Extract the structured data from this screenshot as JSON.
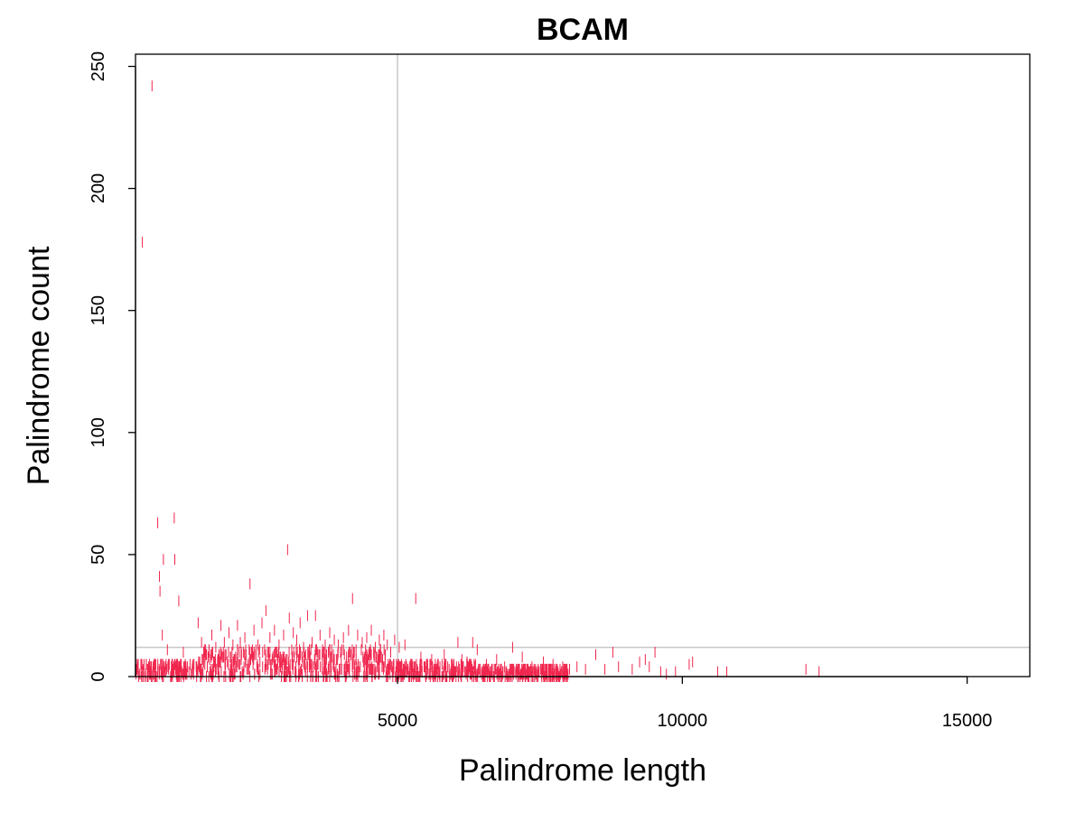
{
  "chart_data": {
    "type": "scatter",
    "title": "BCAM",
    "xlabel": "Palindrome length",
    "ylabel": "Palindrome count",
    "xlim": [
      400,
      16100
    ],
    "ylim": [
      0,
      255
    ],
    "x_ticks": [
      "5000",
      "10000",
      "15000"
    ],
    "y_ticks": [
      "0",
      "50",
      "100",
      "150",
      "200",
      "250"
    ],
    "reference_lines": {
      "vertical_x": 5000,
      "horizontal_y": 12
    },
    "grid": false,
    "legend": "none",
    "colors": {
      "marks": "#f0264e",
      "reference": "#c8c8c8",
      "axes": "#000000"
    },
    "background_density": [
      {
        "x_from": 400,
        "x_to": 1500,
        "max": 5
      },
      {
        "x_from": 1500,
        "x_to": 4800,
        "max": 11
      },
      {
        "x_from": 4800,
        "x_to": 6400,
        "max": 5
      },
      {
        "x_from": 6400,
        "x_to": 8000,
        "max": 3
      }
    ],
    "points": [
      [
        520,
        178
      ],
      [
        690,
        242
      ],
      [
        790,
        63
      ],
      [
        820,
        41
      ],
      [
        830,
        35
      ],
      [
        890,
        48
      ],
      [
        870,
        17
      ],
      [
        960,
        11
      ],
      [
        1080,
        65
      ],
      [
        1090,
        48
      ],
      [
        1160,
        31
      ],
      [
        1240,
        10
      ],
      [
        1500,
        22
      ],
      [
        1560,
        14
      ],
      [
        1630,
        11
      ],
      [
        1740,
        17
      ],
      [
        1810,
        12
      ],
      [
        1900,
        21
      ],
      [
        1960,
        14
      ],
      [
        2040,
        18
      ],
      [
        2110,
        13
      ],
      [
        2190,
        21
      ],
      [
        2240,
        14
      ],
      [
        2320,
        16
      ],
      [
        2410,
        38
      ],
      [
        2480,
        19
      ],
      [
        2550,
        13
      ],
      [
        2620,
        22
      ],
      [
        2690,
        27
      ],
      [
        2760,
        16
      ],
      [
        2840,
        19
      ],
      [
        2920,
        13
      ],
      [
        3000,
        17
      ],
      [
        3070,
        52
      ],
      [
        3100,
        24
      ],
      [
        3170,
        18
      ],
      [
        3230,
        15
      ],
      [
        3290,
        22
      ],
      [
        3350,
        12
      ],
      [
        3420,
        25
      ],
      [
        3500,
        14
      ],
      [
        3560,
        25
      ],
      [
        3640,
        17
      ],
      [
        3730,
        13
      ],
      [
        3810,
        18
      ],
      [
        3890,
        15
      ],
      [
        3960,
        13
      ],
      [
        4050,
        16
      ],
      [
        4140,
        19
      ],
      [
        4210,
        32
      ],
      [
        4300,
        17
      ],
      [
        4380,
        14
      ],
      [
        4460,
        16
      ],
      [
        4540,
        19
      ],
      [
        4610,
        12
      ],
      [
        4680,
        15
      ],
      [
        4760,
        17
      ],
      [
        4820,
        13
      ],
      [
        4880,
        10
      ],
      [
        4950,
        15
      ],
      [
        5030,
        12
      ],
      [
        5130,
        13
      ],
      [
        5320,
        32
      ],
      [
        5410,
        8
      ],
      [
        5600,
        7
      ],
      [
        5820,
        9
      ],
      [
        5950,
        5
      ],
      [
        6060,
        14
      ],
      [
        6130,
        7
      ],
      [
        6220,
        6
      ],
      [
        6320,
        14
      ],
      [
        6400,
        11
      ],
      [
        6560,
        5
      ],
      [
        6740,
        7
      ],
      [
        6880,
        4
      ],
      [
        7020,
        12
      ],
      [
        7190,
        8
      ],
      [
        7360,
        4
      ],
      [
        7560,
        6
      ],
      [
        7730,
        5
      ],
      [
        7900,
        4
      ],
      [
        8020,
        3
      ],
      [
        8150,
        4
      ],
      [
        8300,
        3
      ],
      [
        8480,
        9
      ],
      [
        8640,
        3
      ],
      [
        8780,
        10
      ],
      [
        8880,
        4
      ],
      [
        9120,
        3
      ],
      [
        9250,
        6
      ],
      [
        9350,
        7
      ],
      [
        9420,
        4
      ],
      [
        9520,
        10
      ],
      [
        9620,
        2
      ],
      [
        9720,
        1
      ],
      [
        9880,
        2
      ],
      [
        10120,
        5
      ],
      [
        10180,
        6
      ],
      [
        10620,
        2
      ],
      [
        10780,
        2
      ],
      [
        12170,
        3
      ],
      [
        12400,
        2
      ]
    ]
  }
}
